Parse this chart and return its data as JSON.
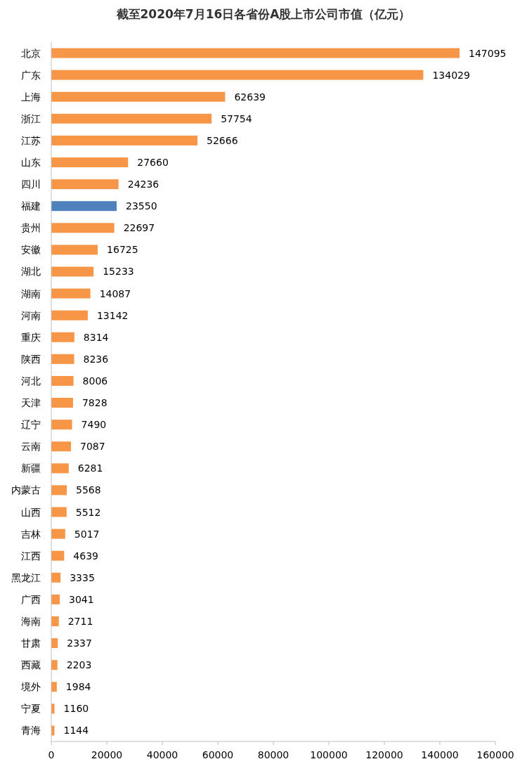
{
  "chart_data": {
    "type": "bar",
    "orientation": "horizontal",
    "title": "截至2020年7月16日各省份A股上市公司市值（亿元）",
    "categories": [
      "北京",
      "广东",
      "上海",
      "浙江",
      "江苏",
      "山东",
      "四川",
      "福建",
      "贵州",
      "安徽",
      "湖北",
      "湖南",
      "河南",
      "重庆",
      "陕西",
      "河北",
      "天津",
      "辽宁",
      "云南",
      "新疆",
      "内蒙古",
      "山西",
      "吉林",
      "江西",
      "黑龙江",
      "广西",
      "海南",
      "甘肃",
      "西藏",
      "境外",
      "宁夏",
      "青海"
    ],
    "values": [
      147095,
      134029,
      62639,
      57754,
      52666,
      27660,
      24236,
      23550,
      22697,
      16725,
      15233,
      14087,
      13142,
      8314,
      8236,
      8006,
      7828,
      7490,
      7087,
      6281,
      5568,
      5512,
      5017,
      4639,
      3335,
      3041,
      2711,
      2337,
      2203,
      1984,
      1160,
      1144
    ],
    "colors": [
      "#f79646",
      "#f79646",
      "#f79646",
      "#f79646",
      "#f79646",
      "#f79646",
      "#f79646",
      "#4f81bd",
      "#f79646",
      "#f79646",
      "#f79646",
      "#f79646",
      "#f79646",
      "#f79646",
      "#f79646",
      "#f79646",
      "#f79646",
      "#f79646",
      "#f79646",
      "#f79646",
      "#f79646",
      "#f79646",
      "#f79646",
      "#f79646",
      "#f79646",
      "#f79646",
      "#f79646",
      "#f79646",
      "#f79646",
      "#f79646",
      "#f79646",
      "#f79646"
    ],
    "data_labels": true,
    "xlim": [
      0,
      160000
    ],
    "xticks": [
      0,
      20000,
      40000,
      60000,
      80000,
      100000,
      120000,
      140000,
      160000
    ]
  }
}
